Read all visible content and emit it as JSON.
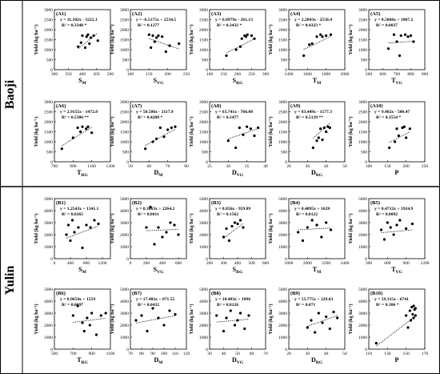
{
  "regions": [
    {
      "name": "Baoji",
      "row_labels": [
        "A1",
        "A2",
        "A3",
        "A4",
        "A5",
        "A6",
        "A7",
        "A8",
        "A9",
        "A10"
      ]
    },
    {
      "name": "Yulin"
    }
  ],
  "ylabel_text": "Yield (kg ha⁻¹)",
  "chart_data": [
    {
      "id": "A1",
      "type": "scatter",
      "eq": "y = 11.102x - 3222.1",
      "r2": "R² = 0.3348 *",
      "xlabel": "S",
      "xsub": "M",
      "xlim": [
        300,
        500
      ],
      "xticks": [
        300,
        350,
        400,
        450,
        500
      ],
      "ylim": [
        0,
        3000
      ],
      "yticks": [
        0,
        500,
        1000,
        1500,
        2000,
        2500,
        3000
      ],
      "x": [
        385,
        395,
        400,
        410,
        415,
        420,
        425,
        430,
        440,
        455
      ],
      "y": [
        1150,
        1350,
        1700,
        1100,
        1650,
        1750,
        1300,
        1600,
        1700,
        1450
      ],
      "trend": [
        11.102,
        -3222.1
      ]
    },
    {
      "id": "A2",
      "type": "scatter",
      "eq": "y = -6.5175x + 2534.5",
      "r2": "R² = 0.1277",
      "xlabel": "S",
      "xsub": "VG",
      "xlim": [
        100,
        250
      ],
      "xticks": [
        100,
        150,
        200,
        250
      ],
      "ylim": [
        0,
        3000
      ],
      "yticks": [
        0,
        500,
        1000,
        1500,
        2000,
        2500,
        3000
      ],
      "x": [
        150,
        155,
        160,
        165,
        170,
        175,
        185,
        195,
        205,
        230
      ],
      "y": [
        1750,
        1100,
        1700,
        1400,
        1600,
        1700,
        1650,
        900,
        1200,
        1300
      ],
      "trend": [
        -6.5175,
        2534.5
      ]
    },
    {
      "id": "A3",
      "type": "scatter",
      "eq": "y = 6.8979x - 261.13",
      "r2": "R² = 0.3432 *",
      "xlabel": "S",
      "xsub": "RG",
      "xlim": [
        100,
        300
      ],
      "xticks": [
        100,
        150,
        200,
        250,
        300
      ],
      "ylim": [
        0,
        3000
      ],
      "yticks": [
        0,
        500,
        1000,
        1500,
        2000,
        2500,
        3000
      ],
      "x": [
        160,
        195,
        210,
        215,
        225,
        230,
        235,
        250,
        260
      ],
      "y": [
        700,
        1000,
        1150,
        1550,
        1700,
        1650,
        1750,
        1700,
        1550
      ],
      "trend": [
        6.8979,
        -261.13
      ]
    },
    {
      "id": "A4",
      "type": "scatter",
      "eq": "y = 2.2843x - 2558.4",
      "r2": "R² = 0.4323 *",
      "xlabel": "T",
      "xsub": "M",
      "xlim": [
        1400,
        2000
      ],
      "xticks": [
        1400,
        1600,
        1800,
        2000
      ],
      "ylim": [
        0,
        3000
      ],
      "yticks": [
        0,
        500,
        1000,
        1500,
        2000,
        2500,
        3000
      ],
      "x": [
        1560,
        1620,
        1650,
        1700,
        1740,
        1760,
        1800,
        1850
      ],
      "y": [
        700,
        1250,
        1300,
        1650,
        1750,
        1650,
        1700,
        1750
      ],
      "trend": [
        2.2843,
        -2558.4
      ]
    },
    {
      "id": "A5",
      "type": "scatter",
      "eq": "y = 0.5066x + 1007.2",
      "r2": "R² = 0.0037",
      "xlabel": "T",
      "xsub": "VG",
      "xlim": [
        500,
        900
      ],
      "xticks": [
        500,
        600,
        700,
        800,
        900
      ],
      "ylim": [
        0,
        3000
      ],
      "yticks": [
        0,
        500,
        1000,
        1500,
        2000,
        2500,
        3000
      ],
      "x": [
        640,
        680,
        700,
        720,
        730,
        760,
        780,
        800,
        820
      ],
      "y": [
        1050,
        1750,
        1400,
        700,
        1700,
        1750,
        1650,
        1700,
        1400
      ],
      "trend": [
        0.5066,
        1007.2
      ]
    },
    {
      "id": "A6",
      "type": "scatter",
      "eq": "y = 2.9155x - 1472.8",
      "r2": "R² = 0.5306 **",
      "xlabel": "T",
      "xsub": "RG",
      "xlim": [
        700,
        1300
      ],
      "xticks": [
        700,
        900,
        1100,
        1300
      ],
      "ylim": [
        0,
        3000
      ],
      "yticks": [
        0,
        500,
        1000,
        1500,
        2000,
        2500,
        3000
      ],
      "x": [
        780,
        900,
        950,
        980,
        1000,
        1040,
        1060,
        1100
      ],
      "y": [
        650,
        1200,
        1700,
        1500,
        1750,
        1650,
        1750,
        1450
      ],
      "trend": [
        2.9155,
        -1472.8
      ]
    },
    {
      "id": "A7",
      "type": "scatter",
      "eq": "y = 50.586x - 2117.9",
      "r2": "R² = 0.4288 *",
      "xlabel": "D",
      "xsub": "M",
      "xlim": [
        50,
        80
      ],
      "xticks": [
        50,
        60,
        70,
        80
      ],
      "ylim": [
        0,
        3000
      ],
      "yticks": [
        0,
        500,
        1000,
        1500,
        2000,
        2500,
        3000
      ],
      "x": [
        58,
        62,
        64,
        66,
        68,
        70,
        72,
        74
      ],
      "y": [
        650,
        1000,
        1150,
        1700,
        1250,
        1600,
        1700,
        1750
      ],
      "trend": [
        50.586,
        -2117.9
      ]
    },
    {
      "id": "A8",
      "type": "scatter",
      "eq": "y = 63.741x - 766.08",
      "r2": "R² = 0.1477",
      "xlabel": "D",
      "xsub": "VG",
      "xlim": [
        25,
        40
      ],
      "xticks": [
        25,
        30,
        35,
        40
      ],
      "ylim": [
        0,
        3000
      ],
      "yticks": [
        0,
        500,
        1000,
        1500,
        2000,
        2500,
        3000
      ],
      "x": [
        30,
        32,
        33,
        34,
        35,
        36,
        37,
        38
      ],
      "y": [
        1050,
        700,
        1700,
        1350,
        1750,
        1650,
        1300,
        1700
      ],
      "trend": [
        63.741,
        -766.08
      ]
    },
    {
      "id": "A9",
      "type": "scatter",
      "eq": "y = 83.449x - 1577.3",
      "r2": "R² = 0.5139 **",
      "xlabel": "D",
      "xsub": "RG",
      "xlim": [
        20,
        50
      ],
      "xticks": [
        20,
        30,
        40,
        50
      ],
      "ylim": [
        0,
        3000
      ],
      "yticks": [
        0,
        500,
        1000,
        1500,
        2000,
        2500,
        3000
      ],
      "x": [
        33,
        35,
        36,
        37,
        38,
        39,
        40,
        41,
        42
      ],
      "y": [
        700,
        1050,
        1200,
        1650,
        1100,
        1700,
        1500,
        1750,
        1700
      ],
      "trend": [
        83.449,
        -1577.3
      ]
    },
    {
      "id": "A10",
      "type": "scatter",
      "eq": "y = 9.482x - 500.47",
      "r2": "R² = 0.3554 *",
      "xlabel": "P",
      "xsub": "",
      "xlim": [
        100,
        250
      ],
      "xticks": [
        100,
        150,
        200,
        250
      ],
      "ylim": [
        0,
        3000
      ],
      "yticks": [
        0,
        500,
        1000,
        1500,
        2000,
        2500,
        3000
      ],
      "x": [
        155,
        170,
        175,
        180,
        190,
        195,
        200,
        210
      ],
      "y": [
        700,
        1000,
        1650,
        1300,
        1700,
        1750,
        1200,
        1650
      ],
      "trend": [
        9.482,
        -500.47
      ]
    },
    {
      "id": "B1",
      "type": "scatter",
      "eq": "y = 1.2543x + 1341.1",
      "r2": "R² = 0.0265",
      "xlabel": "S",
      "xsub": "M",
      "xlim": [
        0,
        1400
      ],
      "xticks": [
        0,
        400,
        800,
        1200
      ],
      "ylim": [
        0,
        5000
      ],
      "yticks": [
        0,
        1000,
        2000,
        3000,
        4000,
        5000
      ],
      "x": [
        300,
        350,
        400,
        450,
        500,
        600,
        700,
        800,
        900,
        1000,
        1100
      ],
      "y": [
        2000,
        2800,
        1500,
        3200,
        2200,
        2600,
        900,
        2800,
        2600,
        3200,
        2900
      ],
      "trend": [
        1.2543,
        1341.1
      ]
    },
    {
      "id": "B2",
      "type": "scatter",
      "eq": "y = 0.3063x + 2264.2",
      "r2": "R² = 0.0011",
      "xlabel": "S",
      "xsub": "VG",
      "xlim": [
        0,
        700
      ],
      "xticks": [
        0,
        200,
        400,
        600
      ],
      "ylim": [
        0,
        5000
      ],
      "yticks": [
        0,
        1000,
        2000,
        3000,
        4000,
        5000
      ],
      "x": [
        200,
        250,
        300,
        350,
        400,
        450,
        500,
        550,
        600
      ],
      "y": [
        2600,
        4300,
        1200,
        2600,
        1800,
        2200,
        3000,
        2800,
        2000
      ],
      "trend": [
        0.3063,
        2264.2
      ]
    },
    {
      "id": "B3",
      "type": "scatter",
      "eq": "y = 8.856x - 959.89",
      "r2": "R² = 0.1562",
      "xlabel": "S",
      "xsub": "RG",
      "xlim": [
        200,
        600
      ],
      "xticks": [
        200,
        300,
        400,
        500,
        600
      ],
      "ylim": [
        0,
        5000
      ],
      "yticks": [
        0,
        1000,
        2000,
        3000,
        4000,
        5000
      ],
      "x": [
        300,
        320,
        340,
        360,
        380,
        400,
        420,
        440
      ],
      "y": [
        1800,
        2500,
        1500,
        2700,
        3000,
        2900,
        3200,
        2600
      ],
      "trend": [
        8.856,
        -959.89
      ]
    },
    {
      "id": "B4",
      "type": "scatter",
      "eq": "y = 0.4095x + 1628",
      "r2": "R² = 0.0122",
      "xlabel": "T",
      "xsub": "M",
      "xlim": [
        1800,
        2400
      ],
      "xticks": [
        1800,
        2000,
        2200,
        2400
      ],
      "ylim": [
        0,
        5000
      ],
      "yticks": [
        0,
        1000,
        2000,
        3000,
        4000,
        5000
      ],
      "x": [
        1900,
        1950,
        2000,
        2050,
        2100,
        2150,
        2200,
        2250
      ],
      "y": [
        2200,
        1500,
        2600,
        3200,
        2800,
        1800,
        3000,
        2400
      ],
      "trend": [
        0.4095,
        1628
      ]
    },
    {
      "id": "B5",
      "type": "scatter",
      "eq": "y = 0.4712x + 1924.9",
      "r2": "R² = 0.0092",
      "xlabel": "T",
      "xsub": "VG",
      "xlim": [
        300,
        1200
      ],
      "xticks": [
        300,
        600,
        900,
        1200
      ],
      "ylim": [
        0,
        5000
      ],
      "yticks": [
        0,
        1000,
        2000,
        3000,
        4000,
        5000
      ],
      "x": [
        500,
        550,
        600,
        650,
        700,
        750,
        800,
        900,
        1000
      ],
      "y": [
        2400,
        1600,
        3000,
        2600,
        2000,
        2800,
        3200,
        2500,
        2900
      ],
      "trend": [
        0.4712,
        1924.9
      ]
    },
    {
      "id": "B6",
      "type": "scatter",
      "eq": "y = 0.9654x + 1559",
      "r2": "R² = 0.0097",
      "xlabel": "T",
      "xsub": "RG",
      "xlim": [
        500,
        1100
      ],
      "xticks": [
        500,
        700,
        900,
        1100
      ],
      "ylim": [
        0,
        5000
      ],
      "yticks": [
        0,
        1000,
        2000,
        3000,
        4000,
        5000
      ],
      "x": [
        700,
        750,
        800,
        820,
        850,
        880,
        900,
        950,
        1000,
        1050
      ],
      "y": [
        2800,
        3600,
        2200,
        1500,
        2600,
        2000,
        3000,
        1200,
        2800,
        3000
      ],
      "trend": [
        0.9654,
        1559
      ]
    },
    {
      "id": "B7",
      "type": "scatter",
      "eq": "y = 17.402x + 871.55",
      "r2": "R² = 0.0432",
      "xlabel": "D",
      "xsub": "M",
      "xlim": [
        70,
        120
      ],
      "xticks": [
        70,
        80,
        90,
        100,
        110,
        120
      ],
      "ylim": [
        0,
        5000
      ],
      "yticks": [
        0,
        1000,
        2000,
        3000,
        4000,
        5000
      ],
      "x": [
        75,
        80,
        85,
        90,
        95,
        100,
        105,
        110
      ],
      "y": [
        2400,
        2800,
        1500,
        3400,
        2600,
        2000,
        3200,
        2900
      ],
      "trend": [
        17.402,
        871.55
      ]
    },
    {
      "id": "B8",
      "type": "scatter",
      "eq": "y = 10.403x + 1896",
      "r2": "R² = 0.0126",
      "xlabel": "D",
      "xsub": "VG",
      "xlim": [
        30,
        70
      ],
      "xticks": [
        30,
        40,
        50,
        60,
        70
      ],
      "ylim": [
        0,
        5000
      ],
      "yticks": [
        0,
        1000,
        2000,
        3000,
        4000,
        5000
      ],
      "x": [
        35,
        40,
        42,
        45,
        48,
        50,
        52,
        55,
        58
      ],
      "y": [
        2800,
        1500,
        2600,
        3200,
        2000,
        2400,
        3000,
        1700,
        2800
      ],
      "trend": [
        10.403,
        1896
      ]
    },
    {
      "id": "B9",
      "type": "scatter",
      "eq": "y = 55.775x + 229.63",
      "r2": "R² = 0.071",
      "xlabel": "D",
      "xsub": "RG",
      "xlim": [
        20,
        50
      ],
      "xticks": [
        20,
        30,
        40,
        50
      ],
      "ylim": [
        0,
        5000
      ],
      "yticks": [
        0,
        1000,
        2000,
        3000,
        4000,
        5000
      ],
      "x": [
        30,
        32,
        34,
        36,
        38,
        40,
        42,
        44,
        46
      ],
      "y": [
        1800,
        2400,
        1400,
        3000,
        2200,
        2700,
        1700,
        3100,
        2600
      ],
      "trend": [
        55.775,
        229.63
      ]
    },
    {
      "id": "B10",
      "type": "scatter",
      "eq": "y = 59.315x - 6741",
      "r2": "R² = 0.386 *",
      "xlabel": "P",
      "xsub": "",
      "xlim": [
        110,
        170
      ],
      "xticks": [
        110,
        130,
        150,
        170
      ],
      "ylim": [
        0,
        5000
      ],
      "yticks": [
        0,
        1000,
        2000,
        3000,
        4000,
        5000
      ],
      "x": [
        118,
        150,
        152,
        154,
        155,
        156,
        157,
        158,
        158,
        159,
        160,
        160
      ],
      "y": [
        500,
        2800,
        1800,
        3200,
        2400,
        3500,
        2900,
        3600,
        2600,
        3300,
        3400,
        2800
      ],
      "trend": [
        59.315,
        -6741
      ]
    }
  ]
}
